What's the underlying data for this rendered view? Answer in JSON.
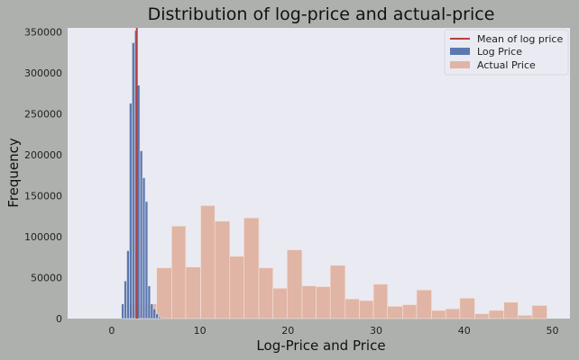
{
  "chart_data": {
    "type": "bar",
    "title": "Distribution of log-price and actual-price",
    "xlabel": "Log-Price and Price",
    "ylabel": "Frequency",
    "xlim": [
      -5,
      52
    ],
    "ylim": [
      0,
      355000
    ],
    "xticks": [
      0,
      10,
      20,
      30,
      40,
      50
    ],
    "yticks": [
      0,
      50000,
      100000,
      150000,
      200000,
      250000,
      300000,
      350000
    ],
    "grid": false,
    "legend_position": "top-right",
    "series": [
      {
        "name": "Log Price",
        "kind": "histogram",
        "color": "#4c6ca8",
        "opacity": 0.9,
        "bin_edges": [
          1.1,
          1.4,
          1.7,
          2.0,
          2.3,
          2.6,
          2.9,
          3.2,
          3.5,
          3.8,
          4.1,
          4.4,
          4.7,
          5.0,
          5.3,
          5.6
        ],
        "values": [
          18000,
          46000,
          83000,
          263000,
          337000,
          352000,
          285000,
          205000,
          172000,
          143000,
          40000,
          18000,
          12000,
          6000,
          2000
        ]
      },
      {
        "name": "Actual Price",
        "kind": "histogram",
        "color": "#dda186",
        "opacity": 0.72,
        "bin_edges": [
          2,
          3.6,
          5.1,
          6.8,
          8.4,
          10.1,
          11.7,
          13.4,
          15.0,
          16.7,
          18.3,
          19.9,
          21.6,
          23.2,
          24.8,
          26.5,
          28.1,
          29.7,
          31.3,
          33.0,
          34.6,
          36.3,
          37.9,
          39.5,
          41.2,
          42.8,
          44.5,
          46.1,
          47.7,
          49.4
        ],
        "values": [
          18000,
          18000,
          62000,
          113000,
          63000,
          138000,
          119000,
          76000,
          123000,
          62000,
          37000,
          84000,
          40000,
          39000,
          65000,
          24000,
          22000,
          42000,
          15000,
          17000,
          35000,
          10000,
          12000,
          25000,
          6000,
          10000,
          20000,
          4000,
          16000
        ]
      },
      {
        "name": "Mean of log price",
        "kind": "vline",
        "color": "#b8403c",
        "x": 2.85
      }
    ]
  }
}
